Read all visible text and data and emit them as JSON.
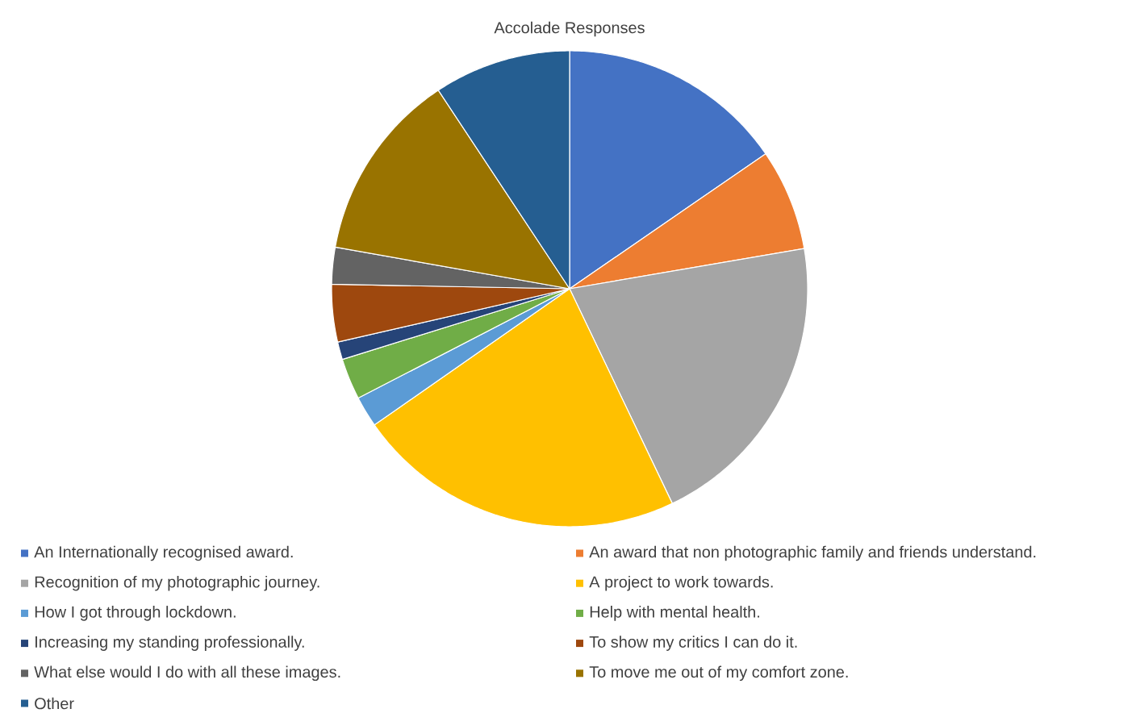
{
  "chart_data": {
    "type": "pie",
    "title": "Accolade Responses",
    "categories": [
      "An Internationally recognised award.",
      "An award that non photographic family and friends understand.",
      "Recognition of my photographic journey.",
      "A project to work towards.",
      "How I got through lockdown.",
      "Help with mental health.",
      "Increasing my standing professionally.",
      "To show my critics I can do it.",
      "What else would I do with all these images.",
      "To move me out of my comfort zone.",
      "Other"
    ],
    "values": [
      15.4,
      6.9,
      20.6,
      22.4,
      2.1,
      2.8,
      1.2,
      3.9,
      2.5,
      12.9,
      9.3
    ],
    "colors": [
      "#4472c4",
      "#ed7d31",
      "#a5a5a5",
      "#ffc000",
      "#5b9bd5",
      "#70ad47",
      "#264478",
      "#9e480e",
      "#636363",
      "#997300",
      "#255e91"
    ],
    "legend": "bottom"
  }
}
